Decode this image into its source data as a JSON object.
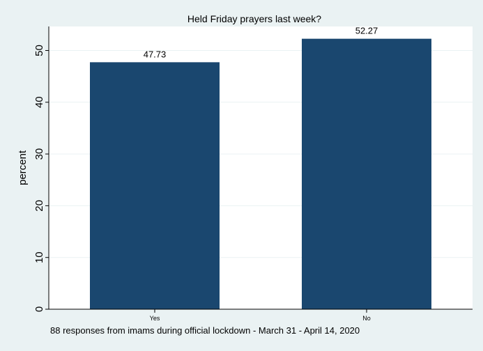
{
  "chart_data": {
    "type": "bar",
    "title": "Held Friday prayers last week?",
    "ylabel": "percent",
    "xlabel": "",
    "categories": [
      "Yes",
      "No"
    ],
    "values": [
      47.73,
      52.27
    ],
    "data_labels": [
      "47.73",
      "52.27"
    ],
    "ylim": [
      0,
      55
    ],
    "yticks": [
      0,
      10,
      20,
      30,
      40,
      50
    ],
    "grid": true,
    "legend": "none",
    "bar_color": "#1a476f",
    "background_color": "#eaf2f3",
    "plot_background_color": "#ffffff",
    "note": "88 responses from imams during official lockdown - March 31 - April 14, 2020"
  }
}
